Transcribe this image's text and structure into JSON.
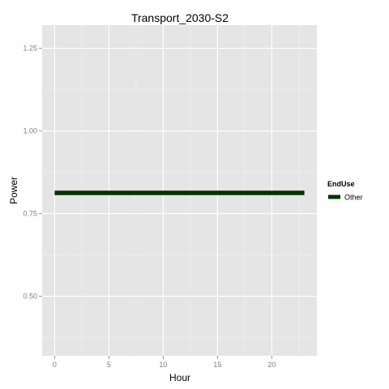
{
  "chart_data": {
    "type": "line",
    "title": "Transport_2030-S2",
    "xlabel": "Hour",
    "ylabel": "Power",
    "xlim": [
      -1.15,
      24.15
    ],
    "ylim": [
      0.32,
      1.32
    ],
    "x_ticks": [
      0,
      5,
      10,
      15,
      20
    ],
    "y_ticks": [
      0.5,
      0.75,
      1.0,
      1.25
    ],
    "y_tick_labels": [
      "0.50",
      "0.75",
      "1.00",
      "1.25"
    ],
    "grid": true,
    "legend": {
      "title": "EndUse",
      "position": "right",
      "entries": [
        "Other"
      ]
    },
    "series": [
      {
        "name": "Other",
        "color": "#003300",
        "x": [
          0,
          1,
          2,
          3,
          4,
          5,
          6,
          7,
          8,
          9,
          10,
          11,
          12,
          13,
          14,
          15,
          16,
          17,
          18,
          19,
          20,
          21,
          22,
          23
        ],
        "values": [
          0.8125,
          0.8125,
          0.8125,
          0.8125,
          0.8125,
          0.8125,
          0.8125,
          0.8125,
          0.8125,
          0.8125,
          0.8125,
          0.8125,
          0.8125,
          0.8125,
          0.8125,
          0.8125,
          0.8125,
          0.8125,
          0.8125,
          0.8125,
          0.8125,
          0.8125,
          0.8125,
          0.8125
        ]
      }
    ],
    "colors": {
      "panel": "#e5e5e5",
      "grid_major": "#ffffff",
      "grid_minor": "#f2f2f2",
      "tick_text": "#7f7f7f"
    }
  }
}
